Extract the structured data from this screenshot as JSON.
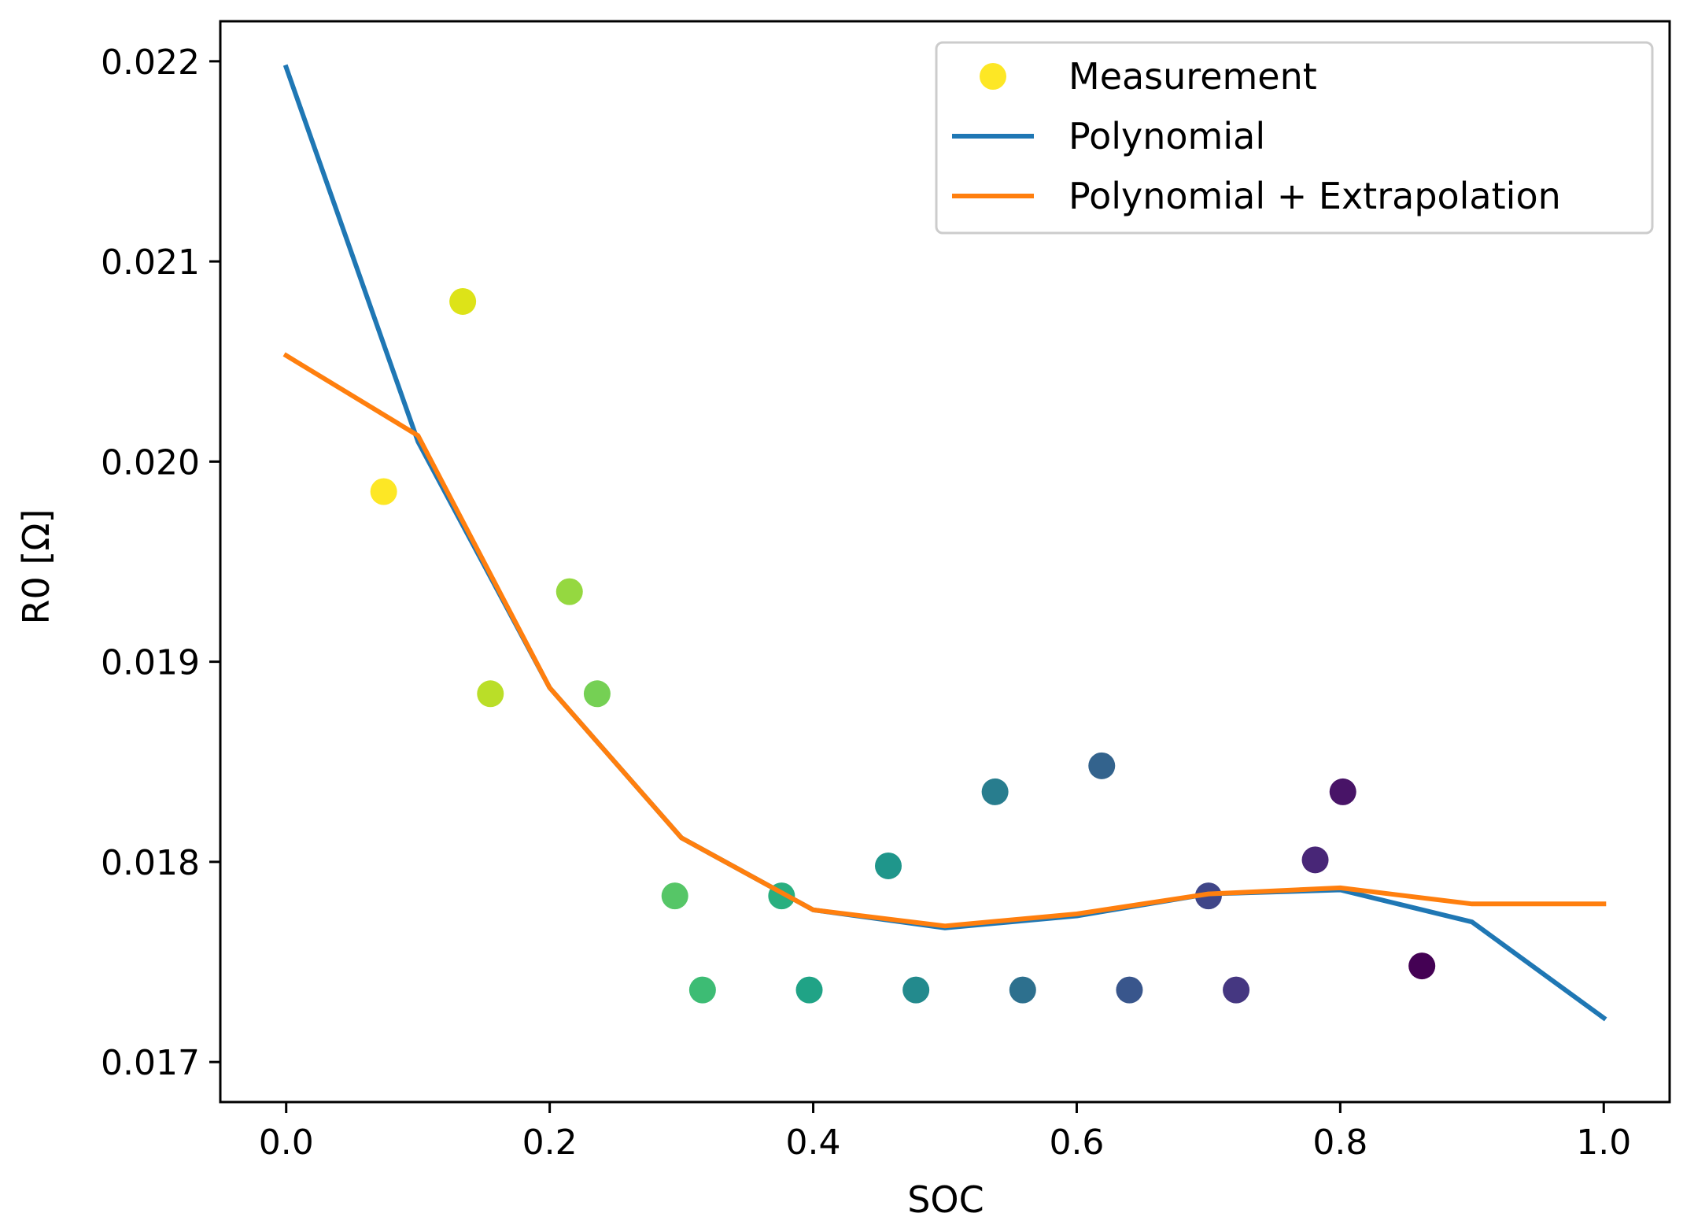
{
  "chart_data": {
    "type": "scatter",
    "title": "",
    "xlabel": "SOC",
    "ylabel": "R0 [Ω]",
    "xlim": [
      -0.05,
      1.05
    ],
    "ylim": [
      0.0168,
      0.0222
    ],
    "xticks": [
      0.0,
      0.2,
      0.4,
      0.6,
      0.8,
      1.0
    ],
    "xtick_labels": [
      "0.0",
      "0.2",
      "0.4",
      "0.6",
      "0.8",
      "1.0"
    ],
    "yticks": [
      0.017,
      0.018,
      0.019,
      0.02,
      0.021,
      0.022
    ],
    "ytick_labels": [
      "0.017",
      "0.018",
      "0.019",
      "0.020",
      "0.021",
      "0.022"
    ],
    "grid": false,
    "legend_position": "top-right",
    "series": [
      {
        "name": "Measurement",
        "kind": "scatter",
        "colormap": "viridis (reversed with SOC)",
        "points": [
          {
            "x": 0.074,
            "y": 0.01985,
            "color": "#fde725"
          },
          {
            "x": 0.134,
            "y": 0.0208,
            "color": "#dde318"
          },
          {
            "x": 0.155,
            "y": 0.01884,
            "color": "#bade28"
          },
          {
            "x": 0.215,
            "y": 0.01935,
            "color": "#95d840"
          },
          {
            "x": 0.236,
            "y": 0.01884,
            "color": "#75d054"
          },
          {
            "x": 0.295,
            "y": 0.01783,
            "color": "#56c667"
          },
          {
            "x": 0.316,
            "y": 0.01736,
            "color": "#3dbc74"
          },
          {
            "x": 0.376,
            "y": 0.01783,
            "color": "#29af7f"
          },
          {
            "x": 0.397,
            "y": 0.01736,
            "color": "#20a386"
          },
          {
            "x": 0.457,
            "y": 0.01798,
            "color": "#1f968b"
          },
          {
            "x": 0.478,
            "y": 0.01736,
            "color": "#238a8d"
          },
          {
            "x": 0.538,
            "y": 0.01835,
            "color": "#287d8e"
          },
          {
            "x": 0.559,
            "y": 0.01736,
            "color": "#2d708e"
          },
          {
            "x": 0.619,
            "y": 0.01848,
            "color": "#33638d"
          },
          {
            "x": 0.64,
            "y": 0.01736,
            "color": "#39568c"
          },
          {
            "x": 0.7,
            "y": 0.01783,
            "color": "#404688"
          },
          {
            "x": 0.721,
            "y": 0.01736,
            "color": "#453781"
          },
          {
            "x": 0.781,
            "y": 0.01801,
            "color": "#482677"
          },
          {
            "x": 0.802,
            "y": 0.01835,
            "color": "#481467"
          },
          {
            "x": 0.862,
            "y": 0.01748,
            "color": "#440154"
          }
        ]
      },
      {
        "name": "Polynomial",
        "kind": "line",
        "color": "#1f77b4",
        "x": [
          0.0,
          0.1,
          0.2,
          0.3,
          0.4,
          0.5,
          0.6,
          0.7,
          0.8,
          0.9,
          1.0
        ],
        "y": [
          0.02197,
          0.0201,
          0.01887,
          0.01812,
          0.01776,
          0.01767,
          0.01773,
          0.01784,
          0.01786,
          0.0177,
          0.01722
        ]
      },
      {
        "name": "Polynomial +  Extrapolation",
        "kind": "line",
        "color": "#ff7f0e",
        "x": [
          0.0,
          0.1,
          0.2,
          0.3,
          0.4,
          0.5,
          0.6,
          0.7,
          0.8,
          0.9,
          1.0
        ],
        "y": [
          0.02053,
          0.02013,
          0.01887,
          0.01812,
          0.01776,
          0.01768,
          0.01774,
          0.01784,
          0.01787,
          0.01779,
          0.01779
        ]
      }
    ]
  }
}
